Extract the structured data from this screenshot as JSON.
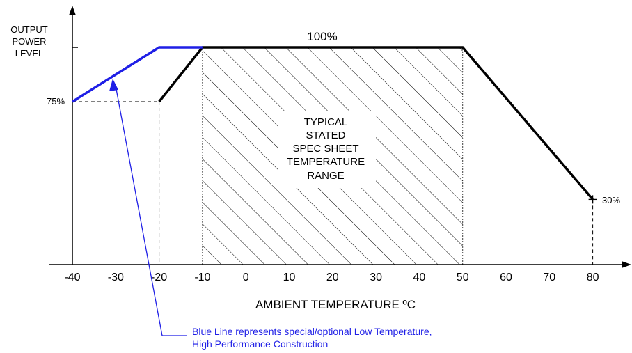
{
  "chart_data": {
    "type": "line",
    "xlabel": "AMBIENT TEMPERATURE ºC",
    "ylabel_lines": [
      "OUTPUT",
      "POWER",
      "LEVEL"
    ],
    "x_ticks": [
      "-40",
      "-30",
      "-20",
      "-10",
      "0",
      "10",
      "20",
      "30",
      "40",
      "50",
      "60",
      "70",
      "80"
    ],
    "xlim": [
      -40,
      85
    ],
    "ylim": [
      0,
      100
    ],
    "series": [
      {
        "color": "#000000",
        "points": [
          [
            -20,
            75
          ],
          [
            -10,
            100
          ],
          [
            50,
            100
          ],
          [
            80,
            30
          ]
        ]
      },
      {
        "color": "#1f1fe6",
        "points": [
          [
            -40,
            75
          ],
          [
            -20,
            100
          ],
          [
            -10,
            100
          ]
        ]
      }
    ],
    "hatched_region": {
      "x_range": [
        -10,
        50
      ],
      "y_range": [
        0,
        100
      ],
      "label_lines": [
        "TYPICAL",
        "STATED",
        "SPEC SHEET",
        "TEMPERATURE",
        "RANGE"
      ]
    },
    "annotations": {
      "label_100": "100%",
      "label_75": "75%",
      "label_30": "30%",
      "note_lines": [
        "Blue Line represents special/optional Low Temperature,",
        "High Performance Construction"
      ],
      "note_color": "#1f1fe6"
    }
  }
}
